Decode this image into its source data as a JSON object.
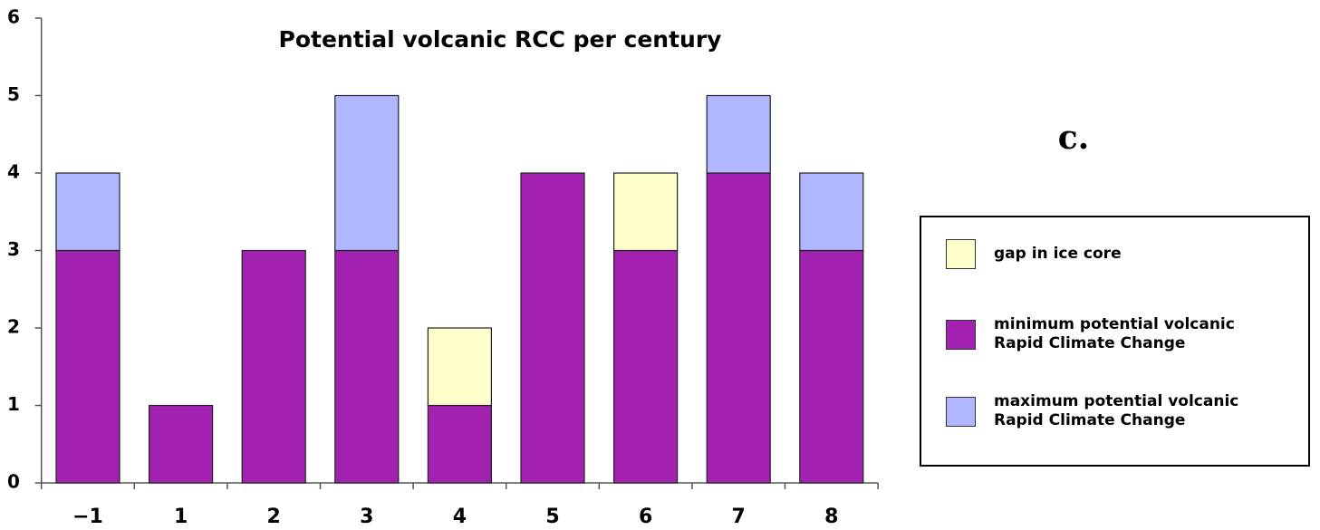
{
  "chart_data": {
    "type": "stacked_bar",
    "title": "Potential volcanic RCC per century",
    "annotation": "c.",
    "categories": [
      "−1",
      "1",
      "2",
      "3",
      "4",
      "5",
      "6",
      "7",
      "8"
    ],
    "series": [
      {
        "name": "minimum potential volcanic Rapid Climate Change",
        "color": "#a321b0",
        "values": [
          3,
          1,
          3,
          3,
          1,
          4,
          3,
          4,
          3
        ]
      },
      {
        "name": "gap in ice core",
        "color": "#ffffcc",
        "values": [
          0,
          0,
          0,
          0,
          1,
          0,
          1,
          0,
          0
        ]
      },
      {
        "name": "maximum potential volcanic Rapid Climate Change",
        "color": "#b0b6ff",
        "values": [
          1,
          0,
          0,
          2,
          0,
          0,
          0,
          1,
          1
        ]
      }
    ],
    "ylim": [
      0,
      6
    ],
    "yticks": [
      0,
      1,
      2,
      3,
      4,
      5,
      6
    ],
    "legend": "right"
  }
}
